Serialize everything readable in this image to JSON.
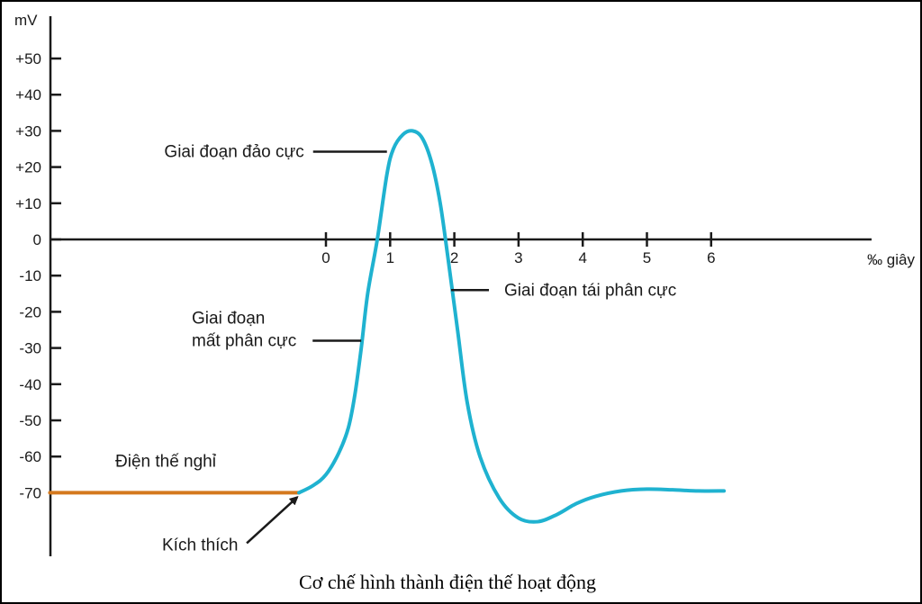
{
  "chart_data": {
    "type": "line",
    "title": "",
    "caption": "Cơ chế hình thành điện thế hoạt động",
    "ylabel": "mV",
    "xlabel": "‰ giây",
    "ylim": [
      -80,
      60
    ],
    "xlim": [
      -4.3,
      8.4
    ],
    "y_ticks": [
      {
        "value": 50,
        "label": "+50"
      },
      {
        "value": 40,
        "label": "+40"
      },
      {
        "value": 30,
        "label": "+30"
      },
      {
        "value": 20,
        "label": "+20"
      },
      {
        "value": 10,
        "label": "+10"
      },
      {
        "value": 0,
        "label": "0"
      },
      {
        "value": -10,
        "label": "-10"
      },
      {
        "value": -20,
        "label": "-20"
      },
      {
        "value": -30,
        "label": "-30"
      },
      {
        "value": -40,
        "label": "-40"
      },
      {
        "value": -50,
        "label": "-50"
      },
      {
        "value": -60,
        "label": "-60"
      },
      {
        "value": -70,
        "label": "-70"
      }
    ],
    "x_ticks": [
      {
        "value": 0,
        "label": "0"
      },
      {
        "value": 1,
        "label": "1"
      },
      {
        "value": 2,
        "label": "2"
      },
      {
        "value": 3,
        "label": "3"
      },
      {
        "value": 4,
        "label": "4"
      },
      {
        "value": 5,
        "label": "5"
      },
      {
        "value": 6,
        "label": "6"
      }
    ],
    "series": [
      {
        "name": "Điện thế nghỉ",
        "color": "#d4791e",
        "x": [
          -4.3,
          -0.42
        ],
        "y": [
          -70,
          -70
        ]
      },
      {
        "name": "",
        "color": "#1fb2d0",
        "x": [
          -0.42,
          -0.2,
          0.0,
          0.2,
          0.35,
          0.45,
          0.55,
          0.65,
          0.8,
          0.95,
          1.05,
          1.2,
          1.35,
          1.5,
          1.65,
          1.78,
          1.9,
          2.05,
          2.2,
          2.4,
          2.7,
          3.0,
          3.3,
          3.6,
          3.9,
          4.2,
          4.6,
          5.0,
          5.4,
          5.8,
          6.2
        ],
        "y": [
          -70,
          -68,
          -65,
          -59,
          -52,
          -43,
          -30,
          -15,
          0,
          18,
          25,
          29,
          30,
          28,
          21,
          10,
          -5,
          -25,
          -45,
          -60,
          -71.5,
          -77,
          -78,
          -76,
          -73,
          -71,
          -69.5,
          -69,
          -69.2,
          -69.5,
          -69.5
        ]
      }
    ],
    "annotations": [
      {
        "text_lines": [
          "Giai đoạn đảo cực"
        ],
        "x": 0.95,
        "y": 24,
        "side": "left"
      },
      {
        "text_lines": [
          "Giai đoạn tái phân cực"
        ],
        "x": 1.95,
        "y": -14,
        "side": "right"
      },
      {
        "text_lines": [
          "Giai đoạn",
          "mất phân cực"
        ],
        "x": 0.55,
        "y": -28,
        "side": "left"
      },
      {
        "text_lines": [
          "Điện thế nghỉ"
        ],
        "x": -2.5,
        "y": -63,
        "side": "label"
      },
      {
        "text_lines": [
          "Kích thích"
        ],
        "x": -0.42,
        "y": -70,
        "side": "arrow-below"
      }
    ],
    "grid": false,
    "legend": "none"
  }
}
